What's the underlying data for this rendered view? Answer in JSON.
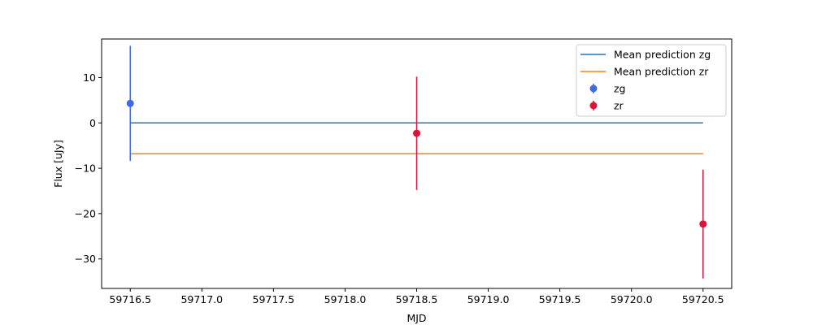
{
  "chart_data": {
    "type": "scatter",
    "title": "",
    "xlabel": "MJD",
    "ylabel": "Flux [uJy]",
    "xlim": [
      59716.3,
      59720.7
    ],
    "ylim": [
      -36.5,
      18.5
    ],
    "xticks": [
      59716.5,
      59717.0,
      59717.5,
      59718.0,
      59718.5,
      59719.0,
      59719.5,
      59720.0,
      59720.5
    ],
    "xtick_labels": [
      "59716.5",
      "59717.0",
      "59717.5",
      "59718.0",
      "59718.5",
      "59719.0",
      "59719.5",
      "59720.0",
      "59720.5"
    ],
    "yticks": [
      10,
      0,
      -10,
      -20,
      -30
    ],
    "ytick_labels": [
      "10",
      "0",
      "−10",
      "−20",
      "−30"
    ],
    "grid": false,
    "legend_position": "top-right",
    "lines": [
      {
        "name": "Mean prediction zg",
        "color": "#1f77b4",
        "x": [
          59716.5,
          59720.5
        ],
        "y": [
          0.0,
          0.0
        ]
      },
      {
        "name": "Mean prediction zr",
        "color": "#ff7f0e",
        "x": [
          59716.5,
          59720.5
        ],
        "y": [
          -6.8,
          -6.8
        ]
      }
    ],
    "series": [
      {
        "name": "zg",
        "color": "#4169e1",
        "points": [
          {
            "x": 59716.5,
            "y": 4.3,
            "err": 12.7
          }
        ]
      },
      {
        "name": "zr",
        "color": "#dc143c",
        "points": [
          {
            "x": 59718.5,
            "y": -2.3,
            "err": 12.5
          },
          {
            "x": 59720.5,
            "y": -22.3,
            "err": 12.0
          }
        ]
      }
    ]
  }
}
